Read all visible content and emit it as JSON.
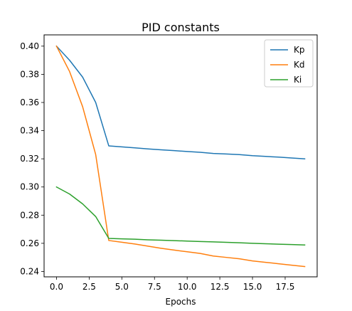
{
  "chart_data": {
    "type": "line",
    "title": "PID constants",
    "xlabel": "Epochs",
    "ylabel": "",
    "xlim": [
      -0.95,
      19.95
    ],
    "ylim": [
      0.2362,
      0.408
    ],
    "x": [
      0,
      1,
      2,
      3,
      4,
      5,
      6,
      7,
      8,
      9,
      10,
      11,
      12,
      13,
      14,
      15,
      16,
      17,
      18,
      19
    ],
    "xticks": [
      0.0,
      2.5,
      5.0,
      7.5,
      10.0,
      12.5,
      15.0,
      17.5
    ],
    "xtick_labels": [
      "0.0",
      "2.5",
      "5.0",
      "7.5",
      "10.0",
      "12.5",
      "15.0",
      "17.5"
    ],
    "yticks": [
      0.24,
      0.26,
      0.28,
      0.3,
      0.32,
      0.34,
      0.36,
      0.38,
      0.4
    ],
    "ytick_labels": [
      "0.24",
      "0.26",
      "0.28",
      "0.30",
      "0.32",
      "0.34",
      "0.36",
      "0.38",
      "0.40"
    ],
    "grid": false,
    "legend_position": "top-right",
    "series": [
      {
        "name": "Kp",
        "color": "#1f77b4",
        "values": [
          0.4,
          0.39,
          0.378,
          0.36,
          0.3292,
          0.3285,
          0.3278,
          0.327,
          0.3264,
          0.3258,
          0.3252,
          0.3246,
          0.3238,
          0.3234,
          0.323,
          0.3222,
          0.3217,
          0.3212,
          0.3206,
          0.32
        ]
      },
      {
        "name": "Kd",
        "color": "#ff7f0e",
        "values": [
          0.4,
          0.382,
          0.357,
          0.323,
          0.262,
          0.2608,
          0.2595,
          0.258,
          0.2565,
          0.2552,
          0.254,
          0.2528,
          0.251,
          0.25,
          0.249,
          0.2475,
          0.2465,
          0.2455,
          0.2445,
          0.2435
        ]
      },
      {
        "name": "Ki",
        "color": "#2ca02c",
        "values": [
          0.3,
          0.295,
          0.288,
          0.279,
          0.2635,
          0.2632,
          0.2629,
          0.2625,
          0.2622,
          0.2619,
          0.2616,
          0.2613,
          0.261,
          0.2607,
          0.2604,
          0.26,
          0.2597,
          0.2594,
          0.2591,
          0.2588
        ]
      }
    ]
  }
}
